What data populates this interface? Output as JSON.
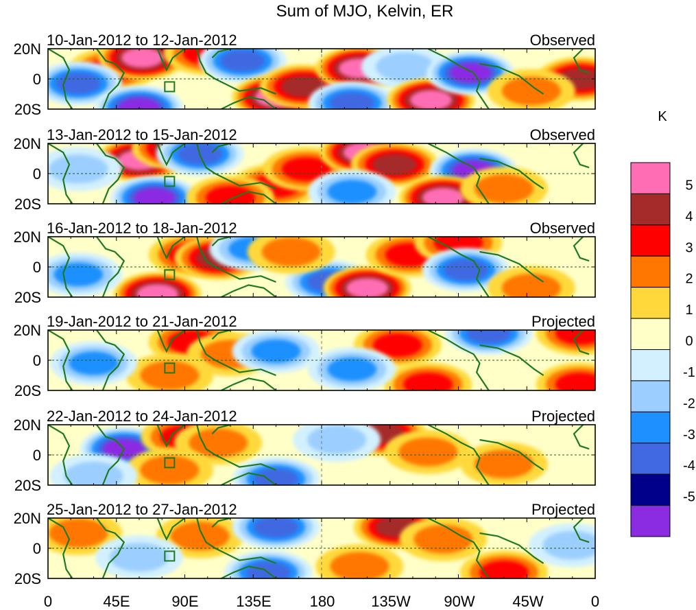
{
  "chart_data": {
    "type": "heatmap",
    "title": "Sum of MJO, Kelvin, ER",
    "colorbar": {
      "label": "K",
      "tick_labels": [
        "5",
        "4",
        "3",
        "2",
        "1",
        "0",
        "-1",
        "-2",
        "-3",
        "-4",
        "-5"
      ],
      "levels": [
        5,
        4,
        3,
        2,
        1,
        0,
        -1,
        -2,
        -3,
        -4,
        -5
      ],
      "colors_top_to_bottom": [
        "#ff6eb4",
        "#a52a2a",
        "#ff0000",
        "#ff7700",
        "#ffd93b",
        "#ffffc8",
        "#d2f0ff",
        "#9ccfff",
        "#1e90ff",
        "#4169e1",
        "#00008b",
        "#8b2be2"
      ]
    },
    "x_axis": {
      "tick_labels": [
        "0",
        "45E",
        "90E",
        "135E",
        "180",
        "135W",
        "90W",
        "45W",
        "0"
      ],
      "lon_range": [
        0,
        360
      ]
    },
    "y_axis": {
      "tick_labels": [
        "20N",
        "0",
        "20S"
      ],
      "lat_range": [
        -20,
        20
      ]
    },
    "panels": [
      {
        "period": "10-Jan-2012 to 12-Jan-2012",
        "status": "Observed",
        "anomalies": [
          {
            "lon": 42,
            "lat": 6,
            "value": 3
          },
          {
            "lon": 62,
            "lat": 14,
            "value": 5
          },
          {
            "lon": 20,
            "lat": -3,
            "value": -4
          },
          {
            "lon": 60,
            "lat": -19,
            "value": -5
          },
          {
            "lon": 105,
            "lat": 17,
            "value": 3
          },
          {
            "lon": 128,
            "lat": 12,
            "value": -4
          },
          {
            "lon": 150,
            "lat": -12,
            "value": 5
          },
          {
            "lon": 168,
            "lat": -5,
            "value": 4
          },
          {
            "lon": 205,
            "lat": 7,
            "value": 5
          },
          {
            "lon": 200,
            "lat": -16,
            "value": -4
          },
          {
            "lon": 235,
            "lat": 8,
            "value": -2
          },
          {
            "lon": 252,
            "lat": -14,
            "value": 5
          },
          {
            "lon": 278,
            "lat": 4,
            "value": -5
          },
          {
            "lon": 350,
            "lat": 0,
            "value": 4
          },
          {
            "lon": 318,
            "lat": -8,
            "value": 2
          }
        ]
      },
      {
        "period": "13-Jan-2012 to 15-Jan-2012",
        "status": "Observed",
        "anomalies": [
          {
            "lon": 60,
            "lat": 9,
            "value": 5
          },
          {
            "lon": 84,
            "lat": 17,
            "value": 4
          },
          {
            "lon": 100,
            "lat": 13,
            "value": -4
          },
          {
            "lon": 70,
            "lat": -16,
            "value": -5
          },
          {
            "lon": 150,
            "lat": -8,
            "value": 3
          },
          {
            "lon": 170,
            "lat": 3,
            "value": 3
          },
          {
            "lon": 120,
            "lat": -16,
            "value": 3
          },
          {
            "lon": 208,
            "lat": 14,
            "value": 5
          },
          {
            "lon": 228,
            "lat": 6,
            "value": 4
          },
          {
            "lon": 200,
            "lat": -12,
            "value": -3
          },
          {
            "lon": 280,
            "lat": 2,
            "value": -5
          },
          {
            "lon": 260,
            "lat": -16,
            "value": 5
          },
          {
            "lon": 300,
            "lat": -10,
            "value": 2
          },
          {
            "lon": 20,
            "lat": 3,
            "value": -2
          }
        ]
      },
      {
        "period": "16-Jan-2012 to 18-Jan-2012",
        "status": "Observed",
        "anomalies": [
          {
            "lon": 95,
            "lat": 8,
            "value": 3
          },
          {
            "lon": 112,
            "lat": 6,
            "value": 4
          },
          {
            "lon": 72,
            "lat": -18,
            "value": 5
          },
          {
            "lon": 135,
            "lat": 12,
            "value": -3
          },
          {
            "lon": 185,
            "lat": -10,
            "value": -4
          },
          {
            "lon": 210,
            "lat": -14,
            "value": 5
          },
          {
            "lon": 238,
            "lat": 8,
            "value": 3
          },
          {
            "lon": 270,
            "lat": 16,
            "value": 3
          },
          {
            "lon": 275,
            "lat": -2,
            "value": -4
          },
          {
            "lon": 20,
            "lat": -5,
            "value": -3
          },
          {
            "lon": 318,
            "lat": -14,
            "value": 2
          },
          {
            "lon": 160,
            "lat": 10,
            "value": 2
          }
        ]
      },
      {
        "period": "19-Jan-2012 to 21-Jan-2012",
        "status": "Projected",
        "anomalies": [
          {
            "lon": 95,
            "lat": 12,
            "value": 3
          },
          {
            "lon": 120,
            "lat": 4,
            "value": 2
          },
          {
            "lon": 80,
            "lat": -10,
            "value": 2
          },
          {
            "lon": 150,
            "lat": 6,
            "value": -3
          },
          {
            "lon": 230,
            "lat": 10,
            "value": 3
          },
          {
            "lon": 250,
            "lat": -16,
            "value": 3
          },
          {
            "lon": 290,
            "lat": 18,
            "value": -4
          },
          {
            "lon": 350,
            "lat": 18,
            "value": 3
          },
          {
            "lon": 350,
            "lat": -16,
            "value": 3
          },
          {
            "lon": 30,
            "lat": -2,
            "value": -3
          },
          {
            "lon": 200,
            "lat": -6,
            "value": -3
          }
        ]
      },
      {
        "period": "22-Jan-2012 to 24-Jan-2012",
        "status": "Projected",
        "anomalies": [
          {
            "lon": 50,
            "lat": 4,
            "value": -5
          },
          {
            "lon": 90,
            "lat": 12,
            "value": 3
          },
          {
            "lon": 112,
            "lat": 8,
            "value": 2
          },
          {
            "lon": 150,
            "lat": -16,
            "value": -4
          },
          {
            "lon": 220,
            "lat": 14,
            "value": 4
          },
          {
            "lon": 250,
            "lat": 2,
            "value": 2
          },
          {
            "lon": 190,
            "lat": 10,
            "value": -2
          },
          {
            "lon": 300,
            "lat": -6,
            "value": 2
          },
          {
            "lon": 80,
            "lat": -10,
            "value": 2
          },
          {
            "lon": 30,
            "lat": -14,
            "value": -2
          }
        ]
      },
      {
        "period": "25-Jan-2012 to 27-Jan-2012",
        "status": "Projected",
        "anomalies": [
          {
            "lon": 20,
            "lat": 10,
            "value": 2
          },
          {
            "lon": 100,
            "lat": 8,
            "value": 2
          },
          {
            "lon": 150,
            "lat": 14,
            "value": -4
          },
          {
            "lon": 145,
            "lat": -16,
            "value": -4
          },
          {
            "lon": 230,
            "lat": 14,
            "value": 4
          },
          {
            "lon": 260,
            "lat": 6,
            "value": 2
          },
          {
            "lon": 205,
            "lat": -12,
            "value": 2
          },
          {
            "lon": 300,
            "lat": -16,
            "value": 3
          },
          {
            "lon": 60,
            "lat": -6,
            "value": -2
          },
          {
            "lon": 345,
            "lat": 2,
            "value": -2
          }
        ]
      }
    ]
  }
}
